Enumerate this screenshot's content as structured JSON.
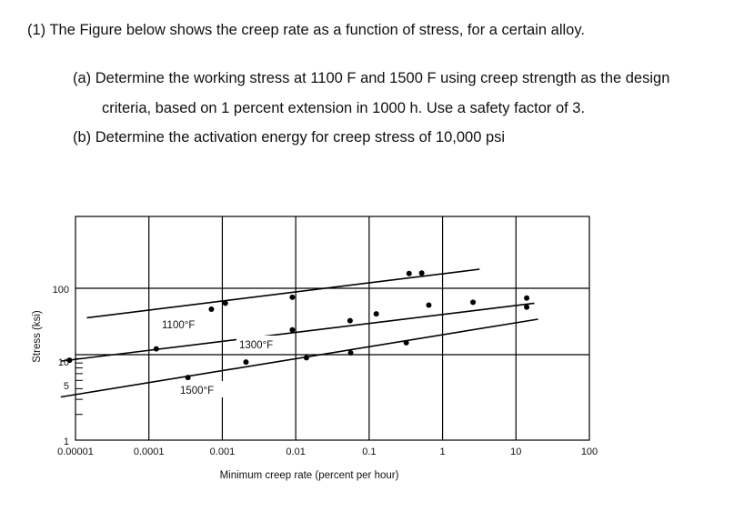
{
  "problem": {
    "intro": "(1)  The Figure below shows the creep rate as a function of stress, for a certain alloy.",
    "part_a_line1": "(a)  Determine the working stress at 1100 F and 1500 F using creep strength as the design",
    "part_a_line2": "criteria, based on 1 percent extension in 1000 h. Use a safety factor of 3.",
    "part_b": "(b)  Determine the activation energy for creep stress of 10,000 psi"
  },
  "chart_data": {
    "type": "line",
    "title": "",
    "xlabel": "Minimum creep rate (percent per hour)",
    "ylabel": "Stress (ksi)",
    "x_scale": "log",
    "y_scale": "log",
    "xlim": [
      1e-05,
      100
    ],
    "ylim": [
      1,
      100
    ],
    "grid": true,
    "x_ticks": [
      "0.00001",
      "0.0001",
      "0.001",
      "0.01",
      "0.1",
      "1",
      "10",
      "100"
    ],
    "x_tick_values": [
      1e-05,
      0.0001,
      0.001,
      0.01,
      0.1,
      1,
      10,
      100
    ],
    "y_ticks": [
      "100",
      "10",
      "5",
      "1"
    ],
    "y_tick_values": [
      100,
      10,
      5,
      1
    ],
    "series": [
      {
        "name": "1100°F",
        "line": [
          [
            1.43e-05,
            27
          ],
          [
            3.2,
            100
          ]
        ],
        "points": [
          [
            0.00071,
            34
          ],
          [
            0.0011,
            40
          ],
          [
            0.009,
            47
          ],
          [
            0.35,
            89
          ],
          [
            0.52,
            90
          ]
        ]
      },
      {
        "name": "1300°F",
        "line": [
          [
            6.3e-06,
            8.4
          ],
          [
            17.8,
            40
          ]
        ],
        "points": [
          [
            8.3e-06,
            8.6
          ],
          [
            0.000126,
            11.7
          ],
          [
            0.009,
            19.5
          ],
          [
            0.055,
            25
          ],
          [
            0.125,
            30
          ],
          [
            0.65,
            38
          ],
          [
            2.6,
            41
          ],
          [
            14,
            46
          ]
        ]
      },
      {
        "name": "1500°F",
        "line": [
          [
            6.3e-06,
            3.2
          ],
          [
            20,
            26
          ]
        ],
        "points": [
          [
            0.00034,
            5.4
          ],
          [
            0.0021,
            8.2
          ],
          [
            0.014,
            9.2
          ],
          [
            0.056,
            10.5
          ],
          [
            0.32,
            13.8
          ],
          [
            14,
            36
          ]
        ]
      }
    ]
  }
}
